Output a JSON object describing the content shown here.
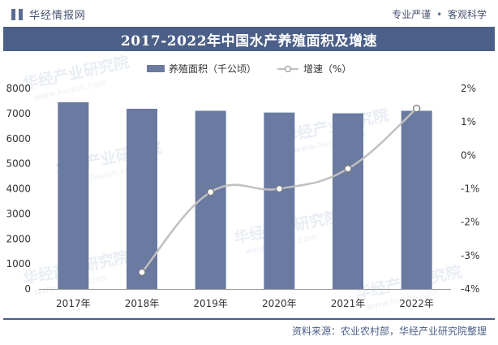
{
  "header": {
    "brand": "华经情报网",
    "slogan_left": "专业严谨",
    "slogan_sep": "•",
    "slogan_right": "客观科学"
  },
  "chart_data": {
    "type": "bar",
    "title": "2017-2022年中国水产养殖面积及增速",
    "categories": [
      "2017年",
      "2018年",
      "2019年",
      "2020年",
      "2021年",
      "2022年"
    ],
    "series": [
      {
        "name": "养殖面积（千公顷）",
        "type": "bar",
        "axis": "left",
        "values": [
          7450,
          7190,
          7110,
          7040,
          7010,
          7110
        ],
        "color": "#6a7aa0"
      },
      {
        "name": "增速（%）",
        "type": "line",
        "axis": "right",
        "values": [
          null,
          -3.5,
          -1.1,
          -1.0,
          -0.4,
          1.4
        ],
        "color": "#c0c0c0"
      }
    ],
    "left_axis": {
      "min": 0,
      "max": 8000,
      "ticks": [
        0,
        1000,
        2000,
        3000,
        4000,
        5000,
        6000,
        7000,
        8000
      ]
    },
    "right_axis": {
      "min": -4,
      "max": 2,
      "ticks": [
        "-4%",
        "-3%",
        "-2%",
        "-1%",
        "0%",
        "1%",
        "2%"
      ]
    },
    "legend_position": "top-center",
    "grid": false
  },
  "watermark": {
    "cn": "华经产业研究院",
    "en": "www.huaon.com"
  },
  "source": "资料来源：农业农村部，华经产业研究院整理"
}
